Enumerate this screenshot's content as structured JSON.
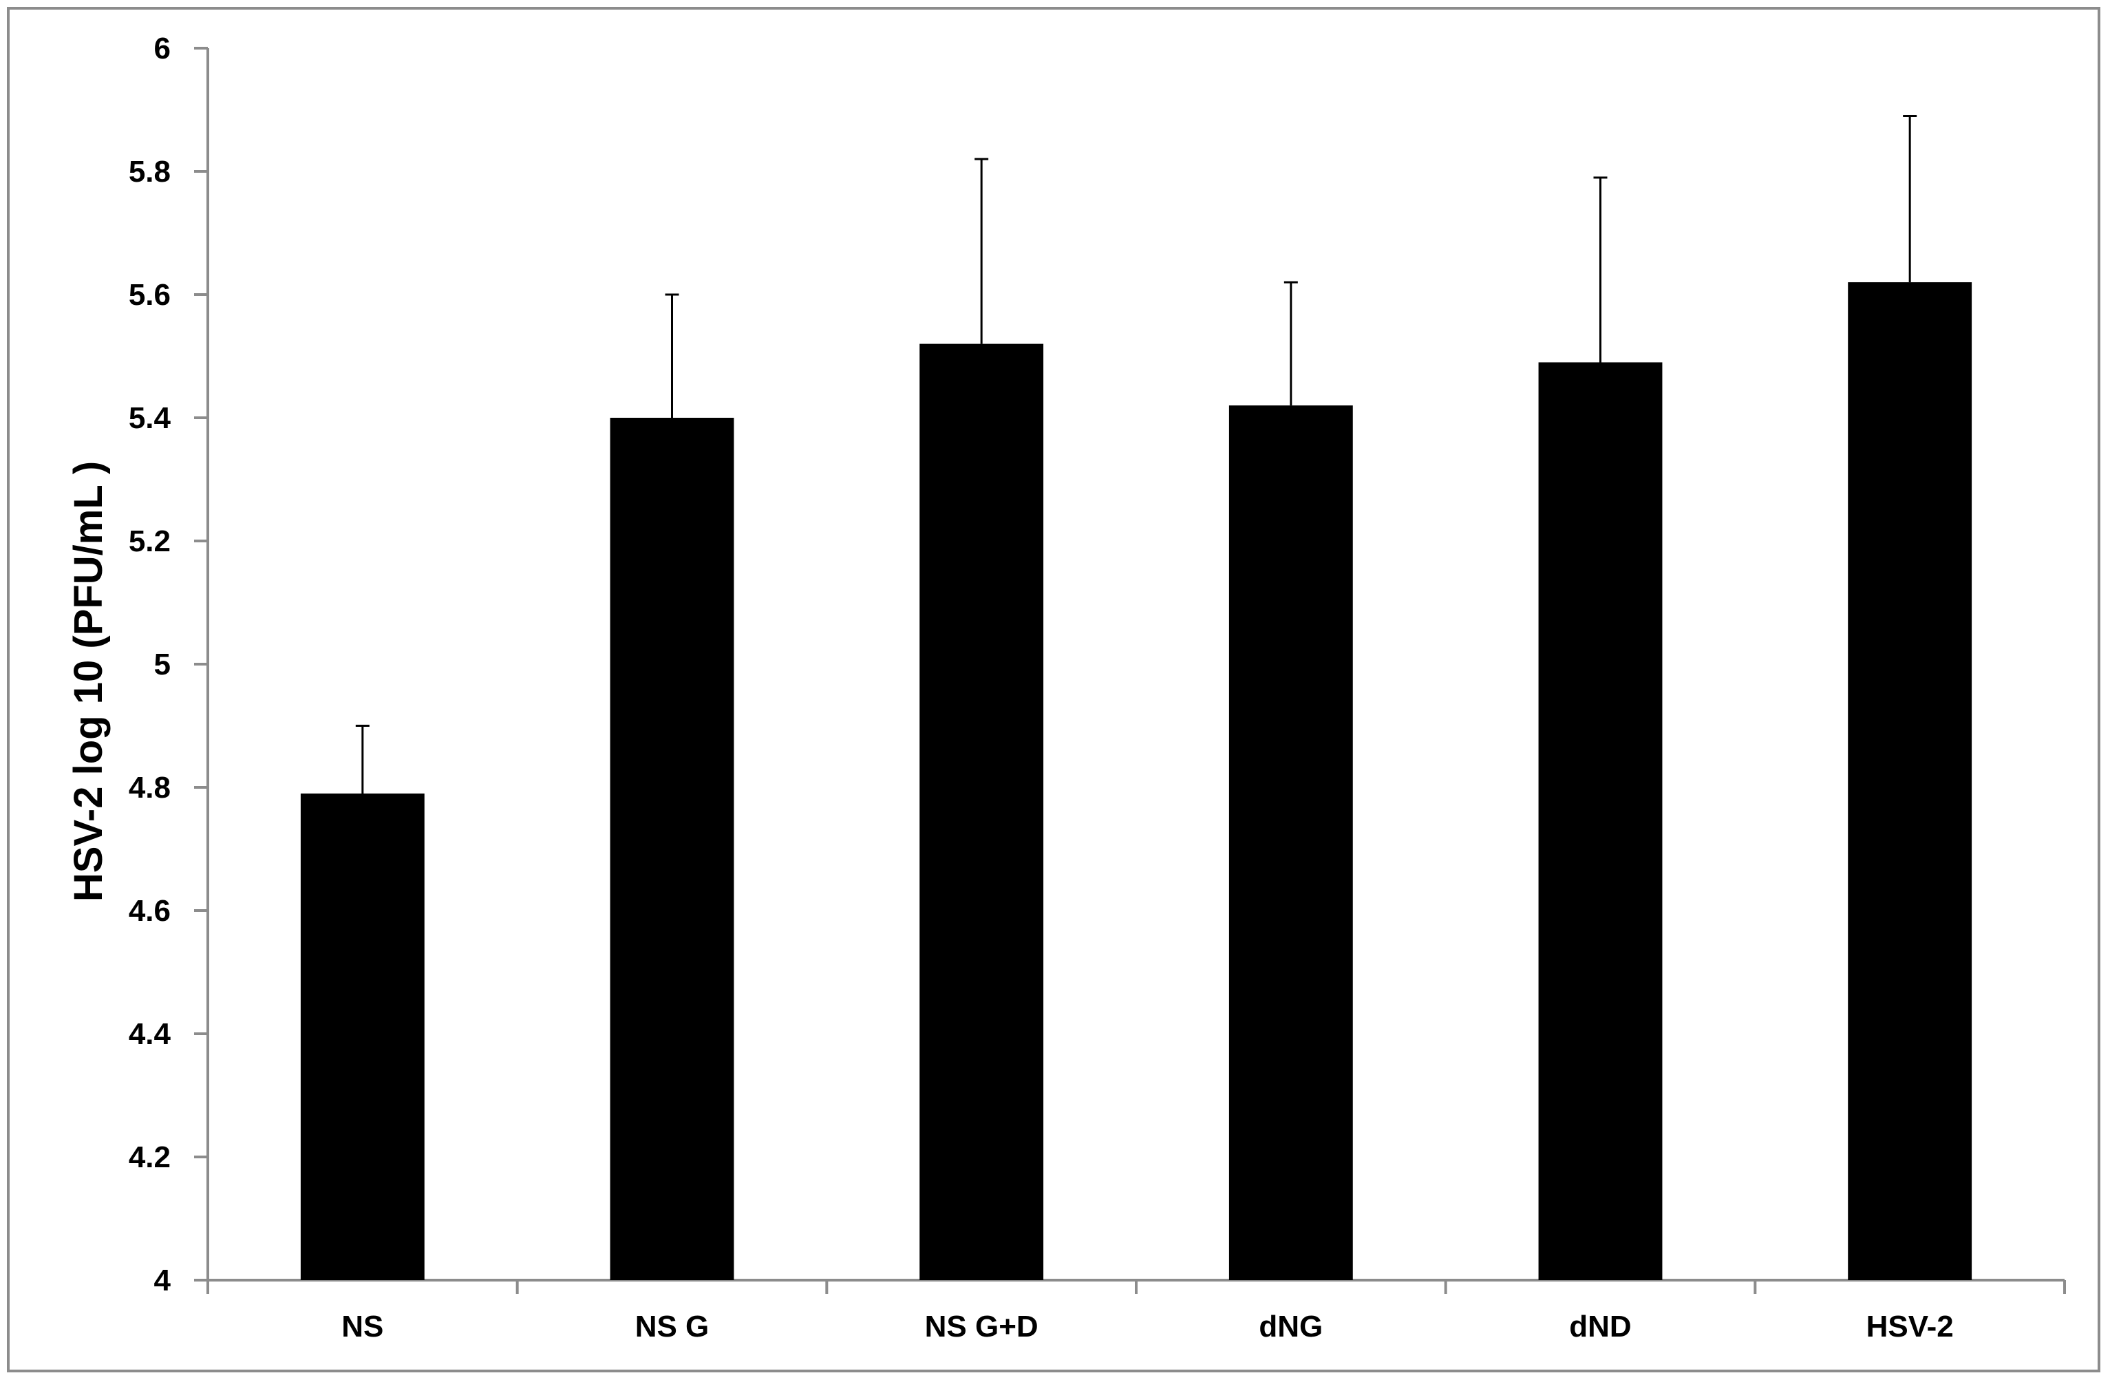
{
  "chart_data": {
    "type": "bar",
    "title": "",
    "xlabel": "",
    "ylabel": "HSV-2 log 10 (PFU/mL )",
    "ylim": [
      4,
      6
    ],
    "yticks": [
      "4",
      "4.2",
      "4.4",
      "4.6",
      "4.8",
      "5",
      "5.2",
      "5.4",
      "5.6",
      "5.8",
      "6"
    ],
    "categories": [
      "NS",
      "NS G",
      "NS G+D",
      "dNG",
      "dND",
      "HSV-2"
    ],
    "values": [
      4.79,
      5.4,
      5.52,
      5.42,
      5.49,
      5.62
    ],
    "error_upper": [
      4.9,
      5.6,
      5.82,
      5.62,
      5.79,
      5.89
    ],
    "grid": false,
    "legend": "none",
    "bar_color": "#000000",
    "axis_color": "#8c8c8c"
  }
}
